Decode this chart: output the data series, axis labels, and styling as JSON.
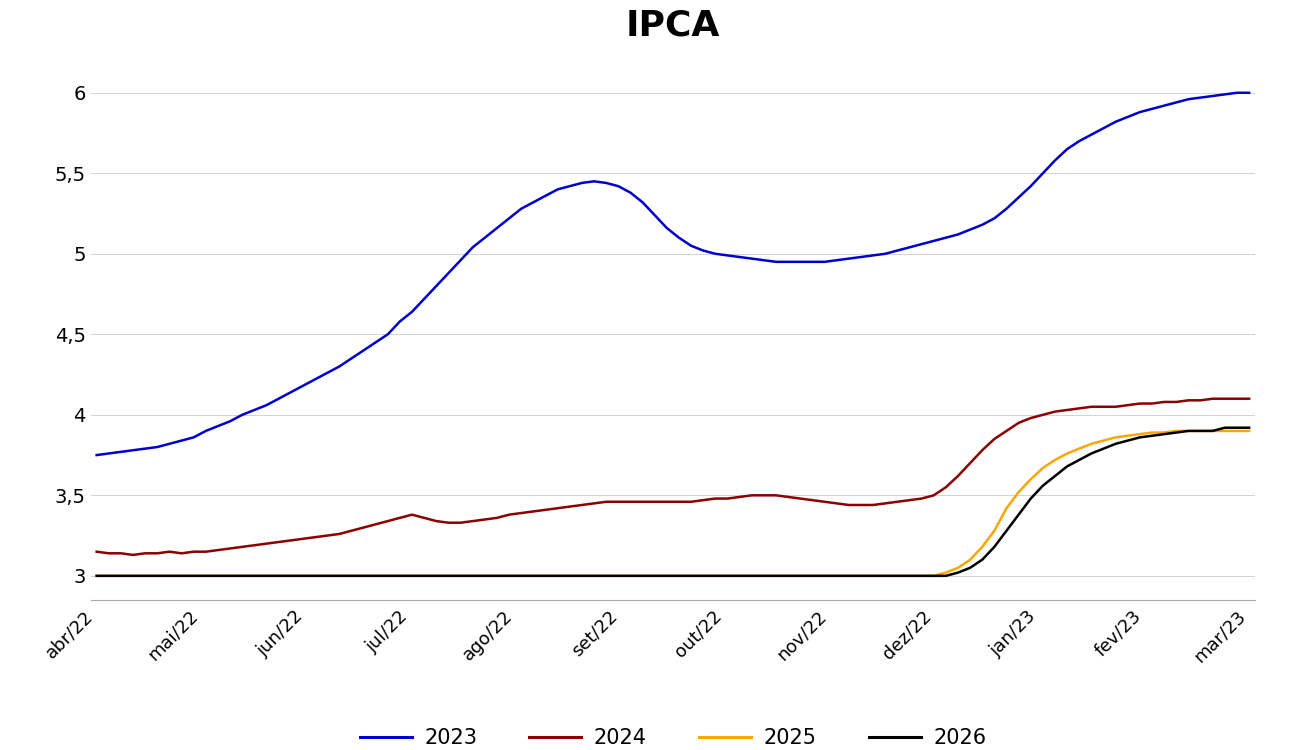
{
  "title": "IPCA",
  "title_fontsize": 26,
  "title_fontweight": "bold",
  "background_color": "#ffffff",
  "ylim": [
    2.85,
    6.25
  ],
  "yticks": [
    3.0,
    3.5,
    4.0,
    4.5,
    5.0,
    5.5,
    6.0
  ],
  "ytick_labels": [
    "3",
    "3,5",
    "4",
    "4,5",
    "5",
    "5,5",
    "6"
  ],
  "xtick_labels": [
    "abr/22",
    "mai/22",
    "jun/22",
    "jul/22",
    "ago/22",
    "set/22",
    "out/22",
    "nov/22",
    "dez/22",
    "jan/23",
    "fev/23",
    "mar/23"
  ],
  "legend_labels": [
    "2023",
    "2024",
    "2025",
    "2026"
  ],
  "legend_colors": [
    "#0000CC",
    "#8B0000",
    "#FFA500",
    "#000000"
  ],
  "series_2023": [
    3.75,
    3.76,
    3.77,
    3.78,
    3.79,
    3.8,
    3.82,
    3.84,
    3.86,
    3.9,
    3.93,
    3.96,
    4.0,
    4.03,
    4.06,
    4.1,
    4.14,
    4.18,
    4.22,
    4.26,
    4.3,
    4.35,
    4.4,
    4.45,
    4.5,
    4.58,
    4.64,
    4.72,
    4.8,
    4.88,
    4.96,
    5.04,
    5.1,
    5.16,
    5.22,
    5.28,
    5.32,
    5.36,
    5.4,
    5.42,
    5.44,
    5.45,
    5.44,
    5.42,
    5.38,
    5.32,
    5.24,
    5.16,
    5.1,
    5.05,
    5.02,
    5.0,
    4.99,
    4.98,
    4.97,
    4.96,
    4.95,
    4.95,
    4.95,
    4.95,
    4.95,
    4.96,
    4.97,
    4.98,
    4.99,
    5.0,
    5.02,
    5.04,
    5.06,
    5.08,
    5.1,
    5.12,
    5.15,
    5.18,
    5.22,
    5.28,
    5.35,
    5.42,
    5.5,
    5.58,
    5.65,
    5.7,
    5.74,
    5.78,
    5.82,
    5.85,
    5.88,
    5.9,
    5.92,
    5.94,
    5.96,
    5.97,
    5.98,
    5.99,
    6.0,
    6.0
  ],
  "series_2024": [
    3.15,
    3.14,
    3.14,
    3.13,
    3.14,
    3.14,
    3.15,
    3.14,
    3.15,
    3.15,
    3.16,
    3.17,
    3.18,
    3.19,
    3.2,
    3.21,
    3.22,
    3.23,
    3.24,
    3.25,
    3.26,
    3.28,
    3.3,
    3.32,
    3.34,
    3.36,
    3.38,
    3.36,
    3.34,
    3.33,
    3.33,
    3.34,
    3.35,
    3.36,
    3.38,
    3.39,
    3.4,
    3.41,
    3.42,
    3.43,
    3.44,
    3.45,
    3.46,
    3.46,
    3.46,
    3.46,
    3.46,
    3.46,
    3.46,
    3.46,
    3.47,
    3.48,
    3.48,
    3.49,
    3.5,
    3.5,
    3.5,
    3.49,
    3.48,
    3.47,
    3.46,
    3.45,
    3.44,
    3.44,
    3.44,
    3.45,
    3.46,
    3.47,
    3.48,
    3.5,
    3.55,
    3.62,
    3.7,
    3.78,
    3.85,
    3.9,
    3.95,
    3.98,
    4.0,
    4.02,
    4.03,
    4.04,
    4.05,
    4.05,
    4.05,
    4.06,
    4.07,
    4.07,
    4.08,
    4.08,
    4.09,
    4.09,
    4.1,
    4.1,
    4.1,
    4.1
  ],
  "series_2025": [
    3.0,
    3.0,
    3.0,
    3.0,
    3.0,
    3.0,
    3.0,
    3.0,
    3.0,
    3.0,
    3.0,
    3.0,
    3.0,
    3.0,
    3.0,
    3.0,
    3.0,
    3.0,
    3.0,
    3.0,
    3.0,
    3.0,
    3.0,
    3.0,
    3.0,
    3.0,
    3.0,
    3.0,
    3.0,
    3.0,
    3.0,
    3.0,
    3.0,
    3.0,
    3.0,
    3.0,
    3.0,
    3.0,
    3.0,
    3.0,
    3.0,
    3.0,
    3.0,
    3.0,
    3.0,
    3.0,
    3.0,
    3.0,
    3.0,
    3.0,
    3.0,
    3.0,
    3.0,
    3.0,
    3.0,
    3.0,
    3.0,
    3.0,
    3.0,
    3.0,
    3.0,
    3.0,
    3.0,
    3.0,
    3.0,
    3.0,
    3.0,
    3.0,
    3.0,
    3.0,
    3.02,
    3.05,
    3.1,
    3.18,
    3.28,
    3.42,
    3.52,
    3.6,
    3.67,
    3.72,
    3.76,
    3.79,
    3.82,
    3.84,
    3.86,
    3.87,
    3.88,
    3.89,
    3.89,
    3.9,
    3.9,
    3.9,
    3.9,
    3.9,
    3.9,
    3.9
  ],
  "series_2026": [
    3.0,
    3.0,
    3.0,
    3.0,
    3.0,
    3.0,
    3.0,
    3.0,
    3.0,
    3.0,
    3.0,
    3.0,
    3.0,
    3.0,
    3.0,
    3.0,
    3.0,
    3.0,
    3.0,
    3.0,
    3.0,
    3.0,
    3.0,
    3.0,
    3.0,
    3.0,
    3.0,
    3.0,
    3.0,
    3.0,
    3.0,
    3.0,
    3.0,
    3.0,
    3.0,
    3.0,
    3.0,
    3.0,
    3.0,
    3.0,
    3.0,
    3.0,
    3.0,
    3.0,
    3.0,
    3.0,
    3.0,
    3.0,
    3.0,
    3.0,
    3.0,
    3.0,
    3.0,
    3.0,
    3.0,
    3.0,
    3.0,
    3.0,
    3.0,
    3.0,
    3.0,
    3.0,
    3.0,
    3.0,
    3.0,
    3.0,
    3.0,
    3.0,
    3.0,
    3.0,
    3.0,
    3.02,
    3.05,
    3.1,
    3.18,
    3.28,
    3.38,
    3.48,
    3.56,
    3.62,
    3.68,
    3.72,
    3.76,
    3.79,
    3.82,
    3.84,
    3.86,
    3.87,
    3.88,
    3.89,
    3.9,
    3.9,
    3.9,
    3.92,
    3.92,
    3.92
  ]
}
